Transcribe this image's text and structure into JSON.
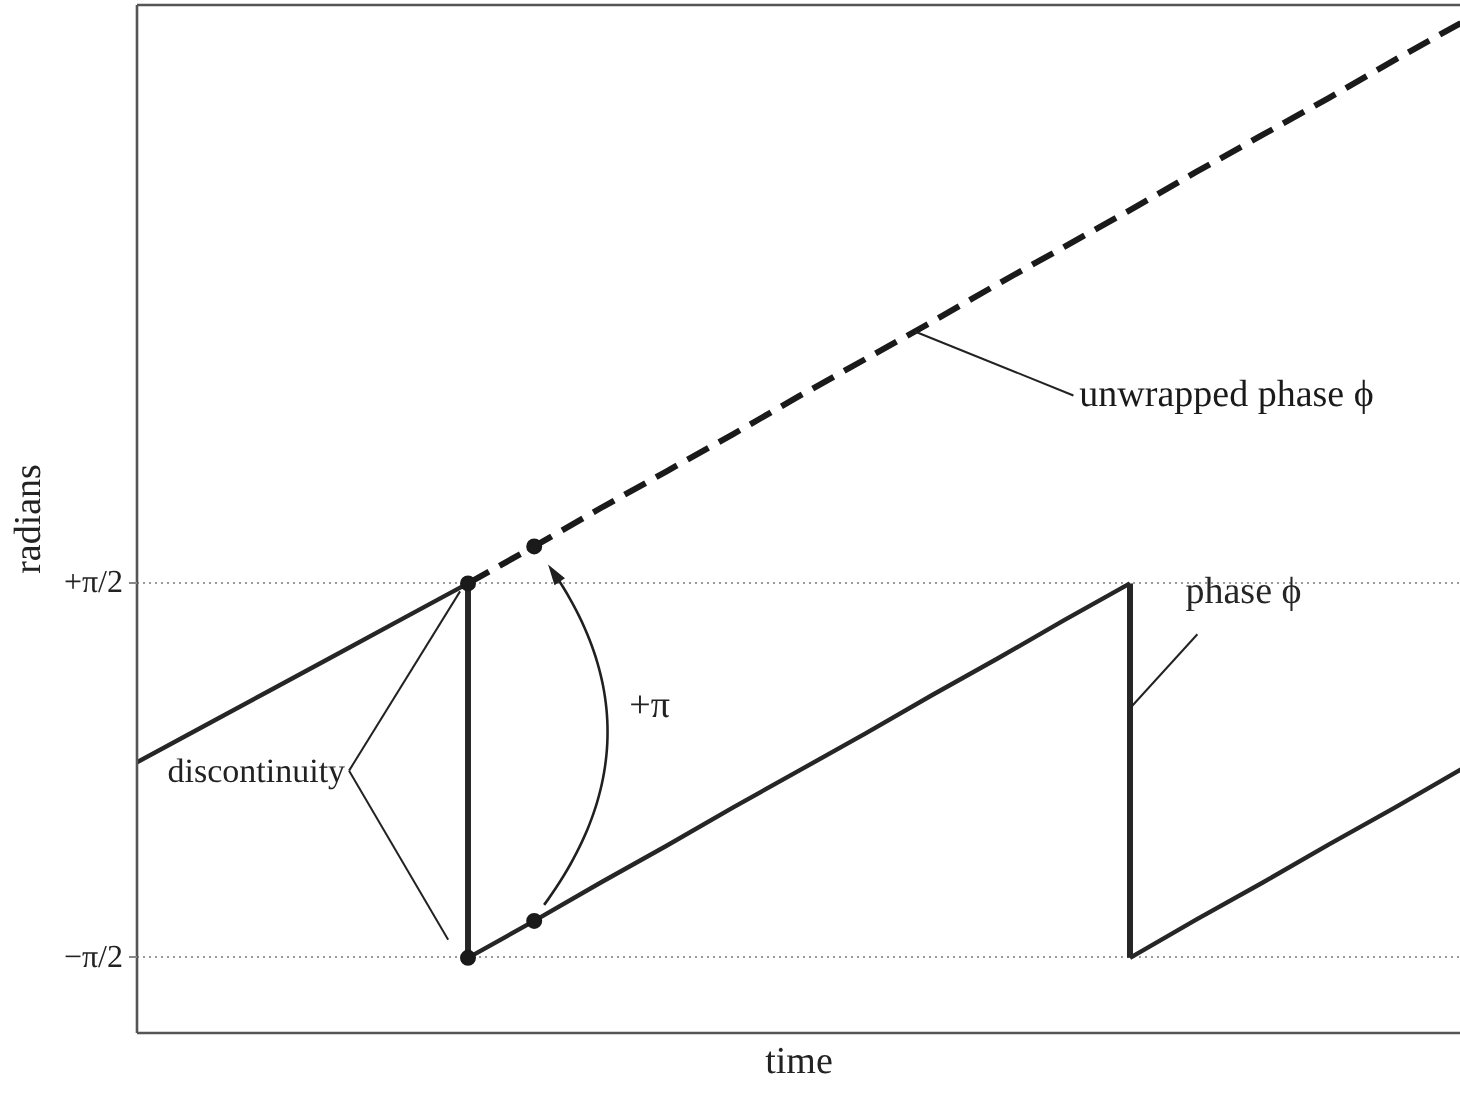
{
  "chart_data": {
    "type": "line",
    "xlabel": "time",
    "ylabel": "radians",
    "categories": [
      null,
      null,
      null,
      null,
      null,
      null,
      null,
      null,
      null,
      null,
      null,
      null,
      null,
      null,
      null,
      null,
      null,
      null,
      null,
      null,
      null
    ],
    "ylim": [
      -2.2,
      6.42
    ],
    "yticks": [
      {
        "value": -1.5708,
        "label": "−π/2"
      },
      {
        "value": 1.5708,
        "label": "+π/2"
      }
    ],
    "tick_labels": "y",
    "grid": "y",
    "series": [
      {
        "color": "#262626",
        "line_style": "solid",
        "values": [
          0.07,
          0.37,
          0.67,
          0.97,
          1.27,
          1.57,
          null,
          null,
          null,
          null,
          null,
          null,
          null,
          null,
          null,
          null,
          null,
          null,
          null,
          null,
          null
        ]
      },
      {
        "type": "bar",
        "color": "#262626",
        "values": [
          null,
          null,
          null,
          null,
          null,
          3.14,
          null,
          null,
          null,
          null,
          null,
          null,
          null,
          null,
          null,
          null,
          null,
          null,
          null,
          null,
          null
        ],
        "base": [
          null,
          null,
          null,
          null,
          null,
          -1.57,
          null,
          null,
          null,
          null,
          null,
          null,
          null,
          null,
          null,
          null,
          null,
          null,
          null,
          null,
          null
        ]
      },
      {
        "name": "phase ϕ",
        "color": "#262626",
        "line_style": "solid",
        "values": [
          null,
          null,
          null,
          null,
          null,
          -1.57,
          -1.26,
          -0.94,
          -0.63,
          -0.31,
          0.0,
          0.31,
          0.63,
          0.94,
          1.26,
          1.57,
          null,
          null,
          null,
          null,
          null
        ],
        "errors": [
          null,
          null,
          null,
          null,
          null,
          null,
          null,
          null,
          null,
          null,
          null,
          null,
          null,
          null,
          null,
          [
            -1.57,
            1.57
          ],
          null,
          null,
          null,
          null,
          null
        ]
      },
      {
        "color": "#262626",
        "line_style": "solid",
        "values": [
          null,
          null,
          null,
          null,
          null,
          null,
          null,
          null,
          null,
          null,
          null,
          null,
          null,
          null,
          null,
          -1.57,
          -1.25,
          -0.94,
          -0.62,
          -0.31,
          0.01
        ]
      },
      {
        "name": "unwrapped phase ϕ",
        "color": "#1a1a1a",
        "line_style": "dashed",
        "values": [
          null,
          null,
          null,
          null,
          null,
          1.57,
          1.88,
          2.2,
          2.51,
          2.82,
          3.14,
          3.45,
          3.76,
          4.08,
          4.39,
          4.7,
          5.02,
          5.33,
          5.64,
          5.96,
          6.27
        ]
      },
      {
        "type": "scatter",
        "color": "#1a1a1a",
        "marker": "circle",
        "values": [
          null,
          null,
          null,
          null,
          null,
          1.57,
          1.88,
          null,
          null,
          null,
          null,
          null,
          null,
          null,
          null,
          null,
          null,
          null,
          null,
          null,
          null
        ]
      },
      {
        "type": "scatter",
        "color": "#1a1a1a",
        "marker": "circle",
        "values": [
          null,
          null,
          null,
          null,
          null,
          -1.57,
          -1.26,
          null,
          null,
          null,
          null,
          null,
          null,
          null,
          null,
          null,
          null,
          null,
          null,
          null,
          null
        ]
      }
    ],
    "annotations": [
      "discontinuity",
      "+π"
    ]
  }
}
